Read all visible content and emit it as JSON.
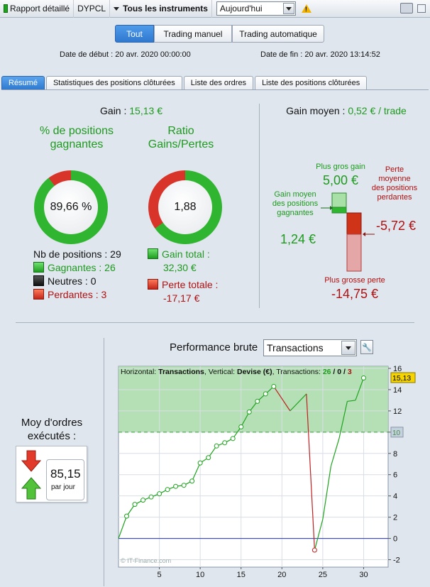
{
  "toolbar": {
    "report_label": "Rapport détaillé",
    "account": "DYPCL",
    "instruments": "Tous les instruments",
    "period": "Aujourd'hui"
  },
  "filter_buttons": [
    "Tout",
    "Trading manuel",
    "Trading automatique"
  ],
  "dates": {
    "start_label": "Date de début :",
    "start_value": "20 avr. 2020 00:00:00",
    "end_label": "Date de fin :",
    "end_value": "20 avr. 2020 13:14:52"
  },
  "tabs": [
    "Résumé",
    "Statistiques des positions clôturées",
    "Liste des ordres",
    "Liste des positions clôturées"
  ],
  "summary": {
    "gain_label": "Gain :",
    "gain_value": "15,13 €",
    "win_title": "% de positions gagnantes",
    "win_pct": "89,66 %",
    "win_fraction": 0.8966,
    "ratio_title": "Ratio Gains/Pertes",
    "ratio_value": "1,88",
    "ratio_gain_fraction": 0.653,
    "nb_positions": "Nb de positions : 29",
    "gagnantes": "Gagnantes : 26",
    "neutres": "Neutres : 0",
    "perdantes": "Perdantes : 3",
    "gain_total_label": "Gain total :",
    "gain_total_value": "32,30 €",
    "perte_totale_label": "Perte totale :",
    "perte_totale_value": "-17,17 €"
  },
  "gain_moyen": {
    "label": "Gain moyen :",
    "value": "0,52 € / trade",
    "plus_gros_gain_label": "Plus gros gain",
    "plus_gros_gain_value": "5,00 €",
    "gain_moyen_pos_label": "Gain moyen des positions gagnantes",
    "gain_moyen_pos_value": "1,24 €",
    "perte_moyenne_label": "Perte moyenne des positions perdantes",
    "perte_moyenne_value": "-5,72 €",
    "plus_grosse_perte_label": "Plus grosse perte",
    "plus_grosse_perte_value": "-14,75 €"
  },
  "orders": {
    "title": "Moy d'ordres exécutés :",
    "value": "85,15",
    "unit": "par jour"
  },
  "performance": {
    "title": "Performance brute",
    "select_value": "Transactions",
    "header_prefix": "Horizontal: ",
    "header_h": "Transactions",
    "header_mid": ", Vertical: ",
    "header_v": "Devise (€)",
    "header_tx": ", Transactions: ",
    "tx_win": "26",
    "tx_sep1": " / ",
    "tx_neutral": "0",
    "tx_sep2": " / ",
    "tx_loss": "3",
    "watermark": "© IT-Finance.com",
    "current_value_label": "15,13",
    "level_label": "10"
  },
  "chart_data": {
    "type": "line",
    "x_ticks": [
      5,
      10,
      15,
      20,
      25,
      30
    ],
    "y_ticks": [
      -2,
      0,
      2,
      4,
      6,
      8,
      10,
      12,
      14,
      16
    ],
    "xlim": [
      0,
      33
    ],
    "ylim": [
      -2.7,
      16.2
    ],
    "series": [
      {
        "values": [
          [
            0,
            0
          ],
          [
            1,
            2.1
          ],
          [
            2,
            3.2
          ],
          [
            3,
            3.6
          ],
          [
            4,
            3.9
          ],
          [
            5,
            4.2
          ],
          [
            6,
            4.6
          ],
          [
            7,
            4.9
          ],
          [
            8,
            5.0
          ],
          [
            9,
            5.4
          ],
          [
            10,
            7.1
          ],
          [
            11,
            7.6
          ],
          [
            12,
            8.7
          ],
          [
            13,
            9.0
          ],
          [
            14,
            9.4
          ],
          [
            15,
            10.5
          ],
          [
            16,
            11.9
          ],
          [
            17,
            12.9
          ],
          [
            18,
            13.6
          ],
          [
            19,
            14.3
          ],
          [
            21,
            12.0
          ],
          [
            23,
            13.6
          ],
          [
            24,
            -1.1
          ],
          [
            25,
            1.8
          ],
          [
            26,
            6.8
          ],
          [
            27,
            9.4
          ],
          [
            28,
            12.9
          ],
          [
            29,
            13.0
          ],
          [
            30,
            15.1
          ]
        ]
      }
    ],
    "marked_points": [
      [
        1,
        2.1
      ],
      [
        2,
        3.2
      ],
      [
        3,
        3.6
      ],
      [
        4,
        3.9
      ],
      [
        5,
        4.2
      ],
      [
        6,
        4.6
      ],
      [
        7,
        4.9
      ],
      [
        8,
        5.0
      ],
      [
        9,
        5.4
      ],
      [
        10,
        7.1
      ],
      [
        11,
        7.6
      ],
      [
        12,
        8.7
      ],
      [
        13,
        9.0
      ],
      [
        14,
        9.4
      ],
      [
        15,
        10.5
      ],
      [
        16,
        11.9
      ],
      [
        17,
        12.9
      ],
      [
        18,
        13.6
      ],
      [
        19,
        14.3
      ],
      [
        24,
        -1.1
      ],
      [
        30,
        15.1
      ]
    ],
    "reference_level": 10,
    "current_value": 15.13,
    "colors": {
      "gain": "#1ea31e",
      "loss": "#c02020",
      "zero": "#2233bb",
      "fill": "#a8dba8"
    }
  },
  "colors": {
    "accent": "#2f79cf",
    "green": "#1e9a1e",
    "red": "#b01010"
  }
}
